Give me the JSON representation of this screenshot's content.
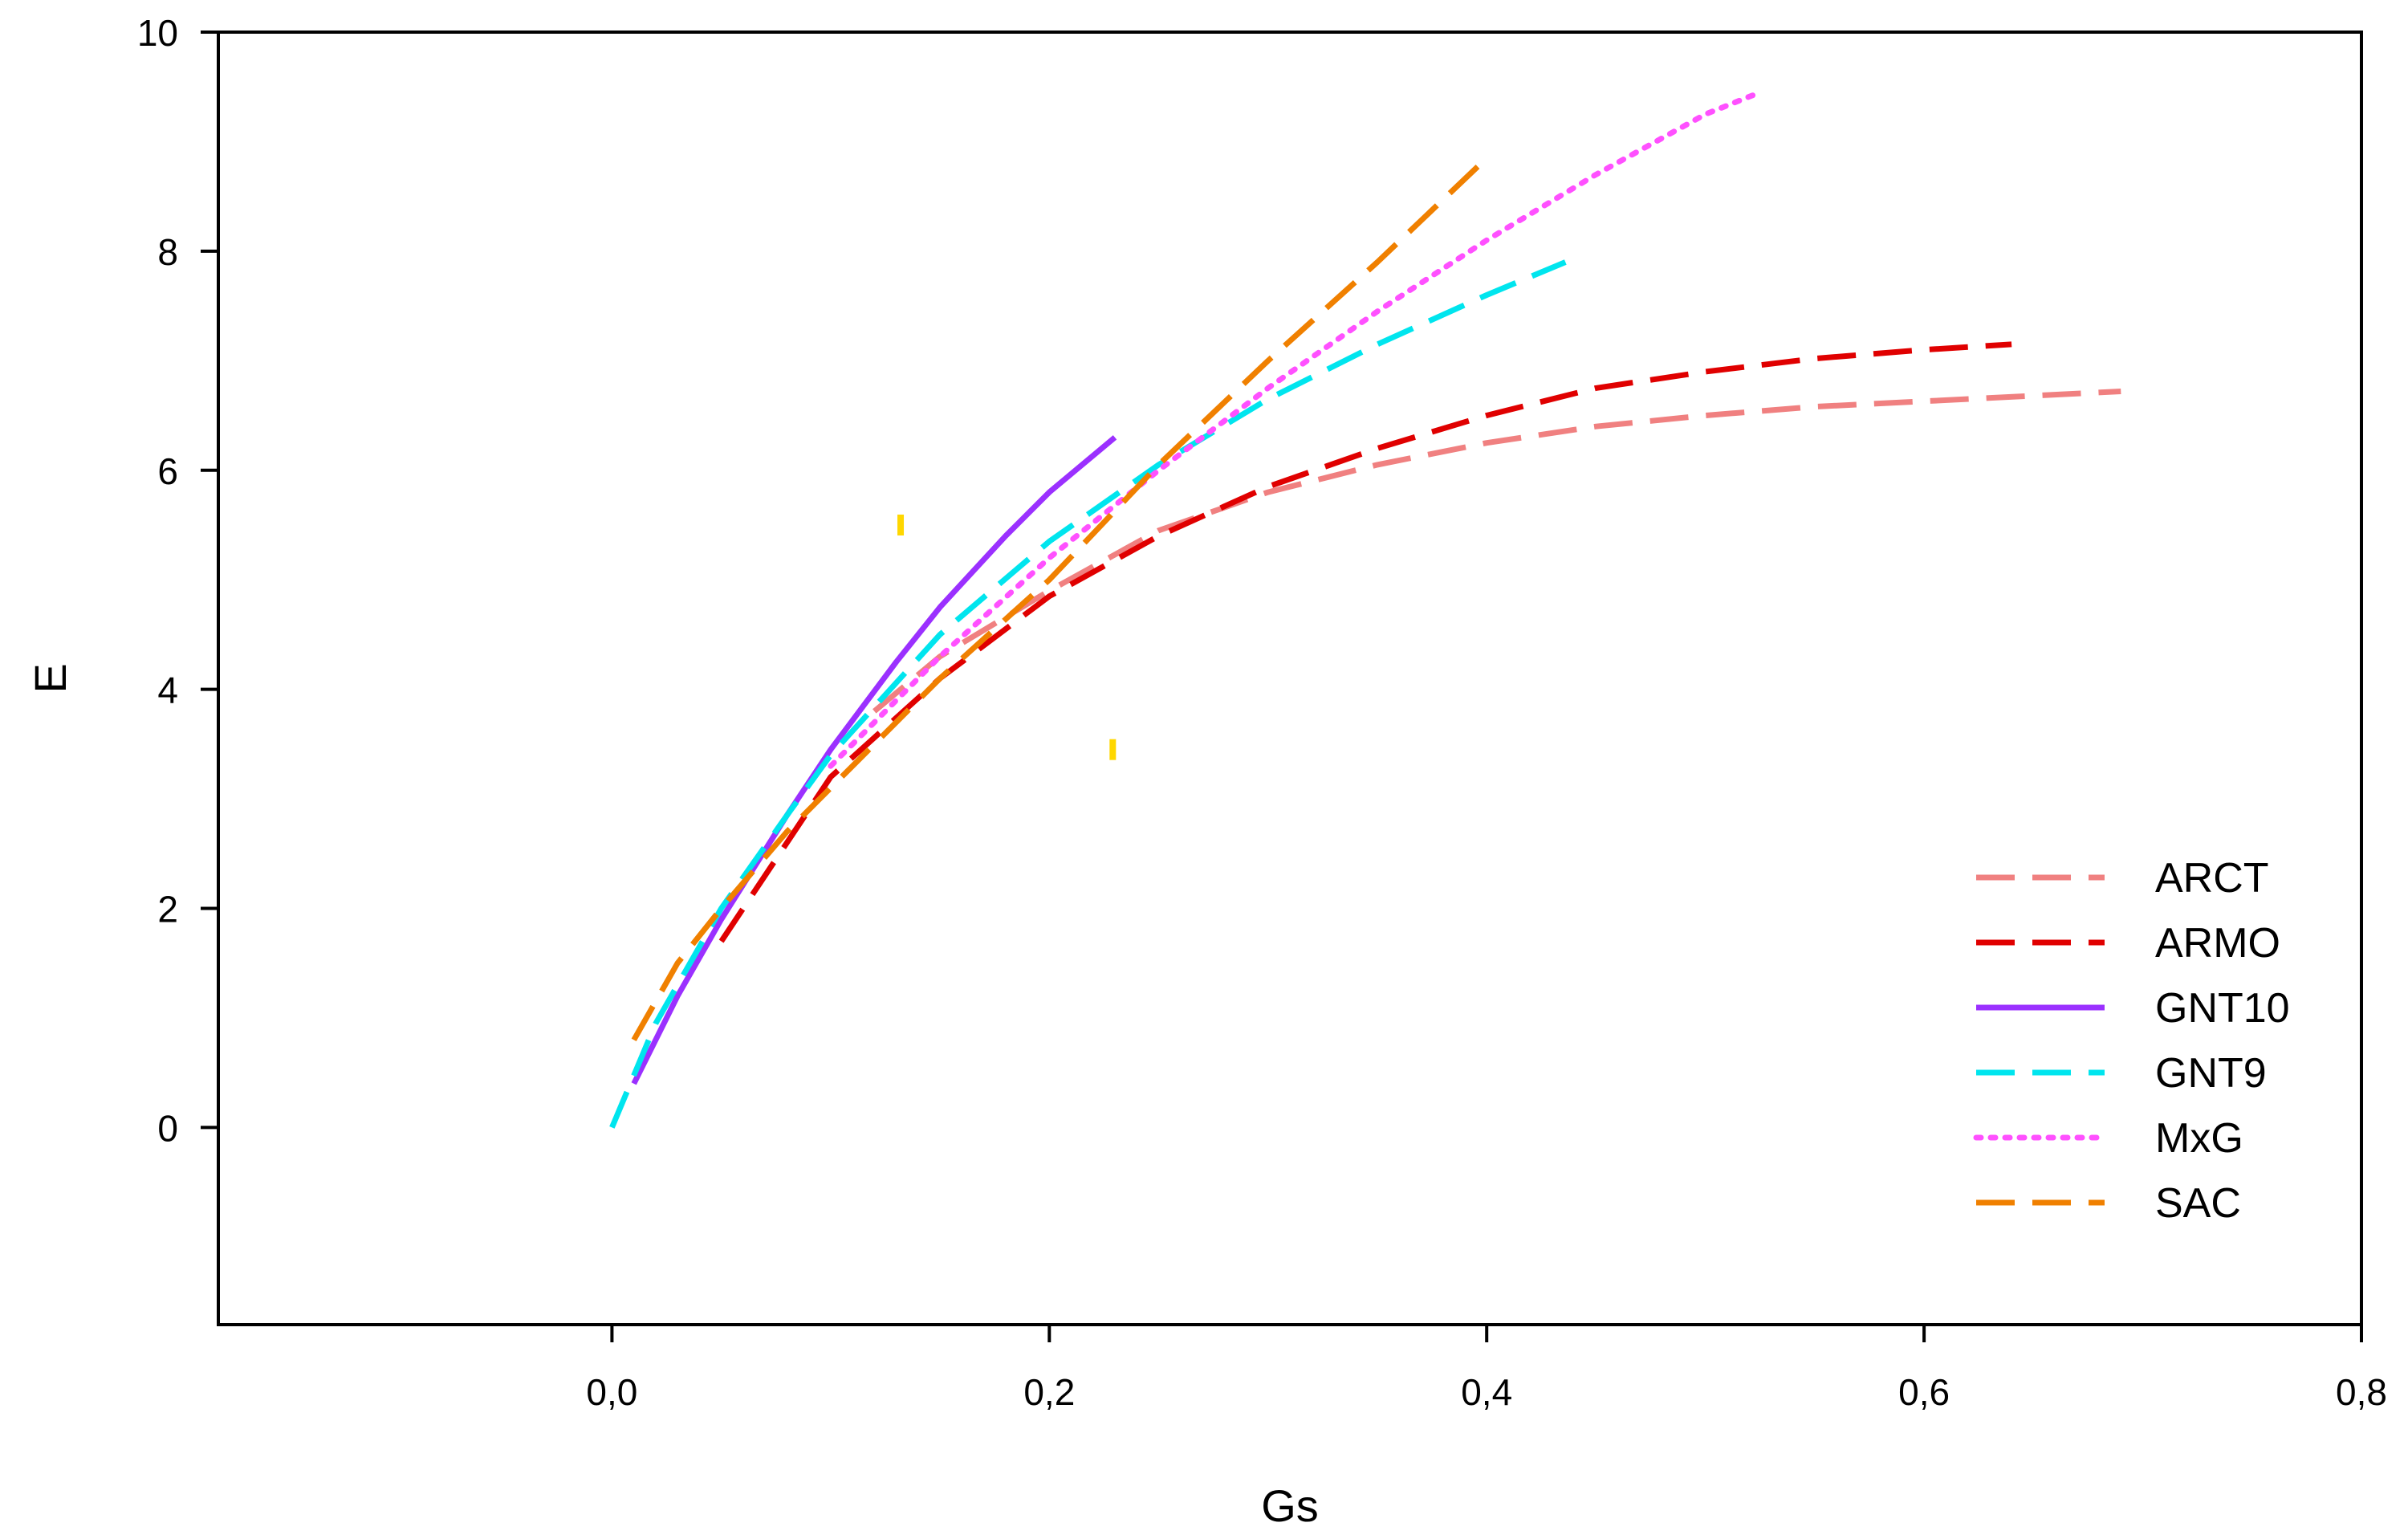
{
  "chart_data": {
    "type": "line",
    "title": "",
    "xlabel": "Gs",
    "ylabel": "E",
    "xlim": [
      -0.18,
      0.8
    ],
    "ylim": [
      -1.8,
      10
    ],
    "x_ticks": [
      "0,0",
      "0,2",
      "0,4",
      "0,6",
      "0,8"
    ],
    "x_tick_values": [
      0.0,
      0.2,
      0.4,
      0.6,
      0.8
    ],
    "y_ticks": [
      "0",
      "2",
      "4",
      "6",
      "8",
      "10"
    ],
    "y_tick_values": [
      0,
      2,
      4,
      6,
      8,
      10
    ],
    "grid": false,
    "legend_position": "bottom-right",
    "series": [
      {
        "name": "ARCT",
        "color": "#f08080",
        "style": "dashed",
        "x": [
          0.12,
          0.15,
          0.2,
          0.25,
          0.3,
          0.35,
          0.4,
          0.45,
          0.5,
          0.55,
          0.6,
          0.65,
          0.69
        ],
        "y": [
          3.8,
          4.3,
          4.9,
          5.45,
          5.8,
          6.05,
          6.25,
          6.4,
          6.5,
          6.58,
          6.63,
          6.68,
          6.72
        ]
      },
      {
        "name": "ARMO",
        "color": "#e00000",
        "style": "dashed",
        "x": [
          0.05,
          0.08,
          0.1,
          0.15,
          0.2,
          0.25,
          0.3,
          0.35,
          0.4,
          0.45,
          0.5,
          0.55,
          0.6,
          0.64
        ],
        "y": [
          1.7,
          2.6,
          3.2,
          4.1,
          4.85,
          5.4,
          5.85,
          6.2,
          6.5,
          6.75,
          6.9,
          7.02,
          7.1,
          7.15
        ]
      },
      {
        "name": "GNT10",
        "color": "#9b30ff",
        "style": "solid",
        "x": [
          0.01,
          0.03,
          0.05,
          0.08,
          0.1,
          0.13,
          0.15,
          0.18,
          0.2,
          0.23
        ],
        "y": [
          0.4,
          1.2,
          1.9,
          2.85,
          3.45,
          4.25,
          4.75,
          5.4,
          5.8,
          6.3
        ]
      },
      {
        "name": "GNT9",
        "color": "#00e5ee",
        "style": "dashed",
        "x": [
          0.0,
          0.02,
          0.05,
          0.08,
          0.1,
          0.15,
          0.2,
          0.25,
          0.3,
          0.35,
          0.4,
          0.436
        ],
        "y": [
          0.0,
          0.95,
          2.0,
          2.85,
          3.4,
          4.5,
          5.35,
          6.05,
          6.65,
          7.15,
          7.6,
          7.9
        ]
      },
      {
        "name": "MxG",
        "color": "#ff50ff",
        "style": "dotted",
        "x": [
          0.1,
          0.15,
          0.2,
          0.25,
          0.3,
          0.35,
          0.4,
          0.45,
          0.5,
          0.525
        ],
        "y": [
          3.3,
          4.3,
          5.2,
          6.0,
          6.75,
          7.45,
          8.1,
          8.7,
          9.25,
          9.45
        ]
      },
      {
        "name": "SAC",
        "color": "#f08000",
        "style": "dashed",
        "x": [
          0.01,
          0.03,
          0.05,
          0.08,
          0.1,
          0.15,
          0.2,
          0.25,
          0.3,
          0.35,
          0.4
        ],
        "y": [
          0.8,
          1.5,
          2.0,
          2.7,
          3.1,
          4.1,
          5.0,
          6.05,
          7.0,
          7.9,
          8.85
        ]
      }
    ],
    "annotations": [
      {
        "shape": "short-vertical-mark",
        "color": "#ffd700",
        "x": 0.132,
        "y": 5.5
      },
      {
        "shape": "short-vertical-mark",
        "color": "#ffd700",
        "x": 0.229,
        "y": 3.45
      }
    ]
  }
}
